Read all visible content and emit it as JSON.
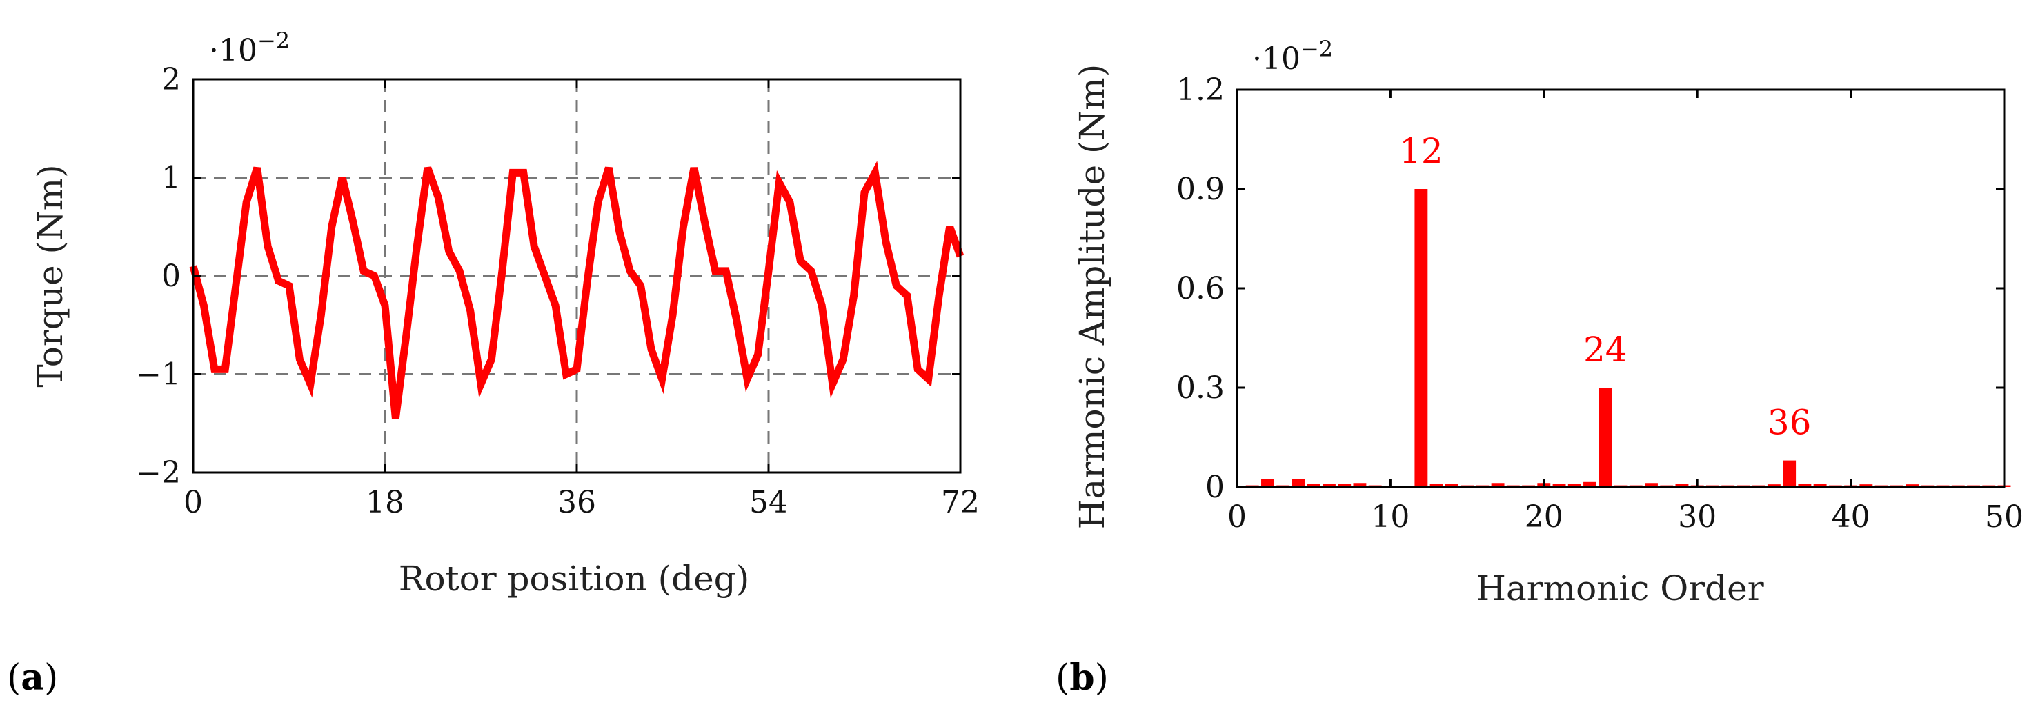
{
  "colors": {
    "series": "#ff0000",
    "grid": "#777777",
    "axis": "#000000"
  },
  "chart_data": [
    {
      "id": "a",
      "type": "line",
      "panel_label": "(a)",
      "panel_letter": "a",
      "multiplier": "·10",
      "multiplier_exp": "−2",
      "xlabel": "Rotor position (deg)",
      "ylabel": "Torque (Nm)",
      "xlim": [
        0,
        72
      ],
      "ylim": [
        -2,
        2
      ],
      "xticks": [
        0,
        18,
        36,
        54,
        72
      ],
      "xtick_labels": [
        "0",
        "18",
        "36",
        "54",
        "72"
      ],
      "yticks": [
        -2,
        -1,
        0,
        1,
        2
      ],
      "ytick_labels": [
        "−2",
        "−1",
        "0",
        "1",
        "2"
      ],
      "grid": "dashed",
      "series": [
        {
          "name": "Torque",
          "x": [
            0,
            1,
            2,
            3,
            4,
            5,
            6,
            7,
            8,
            9,
            10,
            11,
            12,
            13,
            14,
            15,
            16,
            17,
            18,
            19,
            20,
            21,
            22,
            23,
            24,
            25,
            26,
            27,
            28,
            29,
            30,
            31,
            32,
            33,
            34,
            35,
            36,
            37,
            38,
            39,
            40,
            41,
            42,
            43,
            44,
            45,
            46,
            47,
            48,
            49,
            50,
            51,
            52,
            53,
            54,
            55,
            56,
            57,
            58,
            59,
            60,
            61,
            62,
            63,
            64,
            65,
            66,
            67,
            68,
            69,
            70,
            71,
            72
          ],
          "y": [
            0.1,
            -0.3,
            -0.95,
            -0.95,
            -0.1,
            0.75,
            1.1,
            0.3,
            -0.05,
            -0.1,
            -0.85,
            -1.1,
            -0.4,
            0.5,
            1.0,
            0.55,
            0.05,
            0.0,
            -0.3,
            -1.45,
            -0.6,
            0.3,
            1.1,
            0.8,
            0.25,
            0.05,
            -0.35,
            -1.1,
            -0.85,
            0.05,
            1.05,
            1.05,
            0.3,
            0.0,
            -0.3,
            -1.0,
            -0.95,
            -0.05,
            0.75,
            1.1,
            0.45,
            0.05,
            -0.1,
            -0.75,
            -1.05,
            -0.4,
            0.5,
            1.1,
            0.55,
            0.05,
            0.05,
            -0.45,
            -1.05,
            -0.8,
            0.05,
            0.95,
            0.75,
            0.15,
            0.05,
            -0.3,
            -1.1,
            -0.85,
            -0.2,
            0.85,
            1.05,
            0.35,
            -0.1,
            -0.2,
            -0.95,
            -1.05,
            -0.2,
            0.5,
            0.2
          ]
        }
      ]
    },
    {
      "id": "b",
      "type": "bar",
      "panel_label": "(b)",
      "panel_letter": "b",
      "multiplier": "·10",
      "multiplier_exp": "−2",
      "xlabel": "Harmonic Order",
      "ylabel": "Harmonic Amplitude (Nm)",
      "xlim": [
        0,
        50
      ],
      "ylim": [
        0,
        1.2
      ],
      "xticks": [
        0,
        10,
        20,
        30,
        40,
        50
      ],
      "xtick_labels": [
        "0",
        "10",
        "20",
        "30",
        "40",
        "50"
      ],
      "yticks": [
        0,
        0.3,
        0.6,
        0.9,
        1.2
      ],
      "ytick_labels": [
        "0",
        "0.3",
        "0.6",
        "0.9",
        "1.2"
      ],
      "grid": "none",
      "harmonics": [
        1,
        2,
        3,
        4,
        5,
        6,
        7,
        8,
        9,
        10,
        11,
        12,
        13,
        14,
        15,
        16,
        17,
        18,
        19,
        20,
        21,
        22,
        23,
        24,
        25,
        26,
        27,
        28,
        29,
        30,
        31,
        32,
        33,
        34,
        35,
        36,
        37,
        38,
        39,
        40,
        41,
        42,
        43,
        44,
        45,
        46,
        47,
        48,
        49,
        50
      ],
      "values": [
        0.005,
        0.025,
        0.005,
        0.025,
        0.01,
        0.01,
        0.01,
        0.012,
        0.005,
        0.003,
        0.003,
        0.9,
        0.01,
        0.01,
        0.005,
        0.005,
        0.012,
        0.005,
        0.005,
        0.012,
        0.01,
        0.01,
        0.015,
        0.3,
        0.005,
        0.005,
        0.012,
        0.005,
        0.01,
        0.005,
        0.005,
        0.005,
        0.005,
        0.005,
        0.008,
        0.08,
        0.01,
        0.01,
        0.005,
        0.005,
        0.008,
        0.005,
        0.005,
        0.008,
        0.005,
        0.005,
        0.005,
        0.005,
        0.005,
        0.005
      ],
      "annotations": [
        {
          "x": 12,
          "y": 0.9,
          "text": "12"
        },
        {
          "x": 24,
          "y": 0.3,
          "text": "24"
        },
        {
          "x": 36,
          "y": 0.08,
          "text": "36"
        }
      ]
    }
  ]
}
